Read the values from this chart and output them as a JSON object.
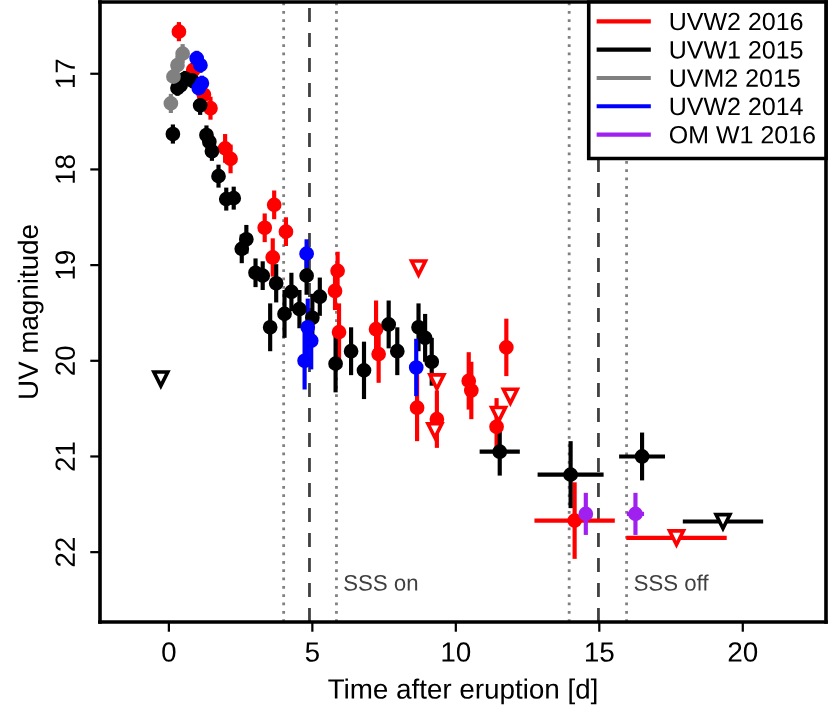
{
  "chart_data": {
    "type": "scatter",
    "xlabel": "Time after eruption [d]",
    "ylabel": "UV magnitude",
    "xlim": [
      -2.4,
      22.9
    ],
    "ylim": [
      22.73,
      16.25
    ],
    "xticks": [
      0,
      5,
      10,
      15,
      20
    ],
    "yticks": [
      17,
      18,
      19,
      20,
      21,
      22
    ],
    "grid": false,
    "legend": "top right",
    "marker": "circle",
    "series": [
      {
        "name": "UVW2 2016",
        "color": "#ff0000",
        "x": [
          0.35,
          0.85,
          1.22,
          1.45,
          1.96,
          2.15,
          3.34,
          3.67,
          4.08,
          3.62,
          5.79,
          5.88,
          5.93,
          7.22,
          7.31,
          8.65,
          9.34,
          10.45,
          10.54,
          11.42,
          11.76,
          14.14
        ],
        "values": [
          16.56,
          16.96,
          17.22,
          17.36,
          17.78,
          17.89,
          18.61,
          18.37,
          18.65,
          18.92,
          19.27,
          19.06,
          19.7,
          19.67,
          19.93,
          20.49,
          20.61,
          20.21,
          20.31,
          20.69,
          19.86,
          21.67
        ],
        "errors": [
          0.1,
          0.1,
          0.12,
          0.12,
          0.15,
          0.15,
          0.15,
          0.15,
          0.15,
          0.2,
          0.2,
          0.2,
          0.3,
          0.3,
          0.3,
          0.35,
          0.3,
          0.3,
          0.3,
          0.3,
          0.3,
          0.4
        ],
        "xerrors": [
          null,
          null,
          null,
          null,
          null,
          null,
          null,
          null,
          null,
          null,
          null,
          null,
          null,
          null,
          null,
          null,
          null,
          null,
          null,
          null,
          null,
          1.4
        ]
      },
      {
        "name": "UVW1 2015",
        "color": "#000000",
        "x": [
          0.14,
          0.3,
          0.41,
          0.57,
          0.81,
          1.09,
          1.31,
          1.41,
          1.5,
          1.73,
          2.0,
          2.26,
          2.54,
          2.7,
          3.02,
          3.27,
          3.53,
          3.74,
          4.03,
          4.27,
          4.55,
          4.8,
          5.0,
          5.26,
          5.81,
          6.35,
          6.8,
          7.66,
          7.96,
          8.7,
          8.93,
          9.16,
          11.53,
          14.0,
          16.49
        ],
        "values": [
          17.63,
          17.15,
          17.12,
          17.05,
          17.07,
          17.33,
          17.64,
          17.71,
          17.81,
          18.07,
          18.31,
          18.3,
          18.83,
          18.73,
          19.08,
          19.11,
          19.65,
          19.19,
          19.51,
          19.28,
          19.46,
          19.11,
          19.55,
          19.33,
          20.03,
          19.9,
          20.1,
          19.62,
          19.9,
          19.65,
          19.76,
          20.01,
          20.95,
          21.19,
          21.0
        ],
        "errors": [
          0.1,
          0.08,
          0.08,
          0.08,
          0.08,
          0.1,
          0.1,
          0.1,
          0.1,
          0.12,
          0.12,
          0.12,
          0.15,
          0.15,
          0.15,
          0.15,
          0.25,
          0.2,
          0.25,
          0.2,
          0.2,
          0.2,
          0.25,
          0.2,
          0.3,
          0.25,
          0.3,
          0.25,
          0.25,
          0.25,
          0.25,
          0.25,
          0.25,
          0.35,
          0.25
        ],
        "xerrors": [
          null,
          null,
          null,
          null,
          null,
          null,
          null,
          null,
          null,
          null,
          null,
          null,
          null,
          null,
          null,
          null,
          null,
          null,
          null,
          null,
          null,
          null,
          null,
          null,
          null,
          null,
          null,
          null,
          null,
          null,
          null,
          null,
          0.7,
          1.15,
          0.8
        ]
      },
      {
        "name": "UVM2 2015",
        "color": "#808080",
        "x": [
          0.07,
          0.16,
          0.3,
          0.48
        ],
        "values": [
          17.31,
          17.03,
          16.91,
          16.79
        ],
        "errors": [
          0.1,
          0.1,
          0.1,
          0.1
        ]
      },
      {
        "name": "UVW2 2014",
        "color": "#0000ff",
        "x": [
          0.97,
          1.1,
          1.15,
          1.04,
          4.8,
          4.73,
          4.96,
          4.84,
          8.62
        ],
        "values": [
          16.84,
          16.91,
          17.1,
          17.15,
          18.88,
          20.0,
          19.79,
          19.65,
          20.07
        ],
        "errors": [
          0.08,
          0.08,
          0.08,
          0.08,
          0.15,
          0.3,
          0.3,
          0.3,
          0.3
        ]
      },
      {
        "name": "OM W1 2016",
        "color": "#a020f0",
        "x": [
          14.53,
          16.26
        ],
        "values": [
          21.6,
          21.6
        ],
        "errors": [
          0.22,
          0.22
        ],
        "xerrors": [
          0.2,
          0.3
        ]
      },
      {
        "color": "#ff0000",
        "marker": "triangle",
        "x": [
          8.7,
          9.34,
          9.27,
          11.49,
          11.9,
          17.69
        ],
        "values": [
          19.03,
          20.22,
          20.73,
          20.56,
          20.37,
          21.85
        ],
        "xerrors": [
          null,
          null,
          null,
          null,
          null,
          1.75
        ]
      },
      {
        "color": "#000000",
        "marker": "triangle",
        "x": [
          -0.28,
          19.31
        ],
        "values": [
          20.19,
          21.68
        ],
        "xerrors": [
          null,
          1.4
        ]
      }
    ],
    "ref_lines": [
      {
        "axis": "x",
        "value": 4.0,
        "color": "#808080",
        "line_style": "dotted"
      },
      {
        "axis": "x",
        "value": 4.9,
        "color": "#404040",
        "line_style": "dashed"
      },
      {
        "axis": "x",
        "value": 5.84,
        "color": "#808080",
        "line_style": "dotted"
      },
      {
        "axis": "x",
        "value": 13.95,
        "color": "#808080",
        "line_style": "dotted"
      },
      {
        "axis": "x",
        "value": 14.97,
        "color": "#404040",
        "line_style": "dashed"
      },
      {
        "axis": "x",
        "value": 15.95,
        "color": "#808080",
        "line_style": "dotted"
      }
    ],
    "annotations": [
      "SSS on",
      "SSS off"
    ]
  }
}
